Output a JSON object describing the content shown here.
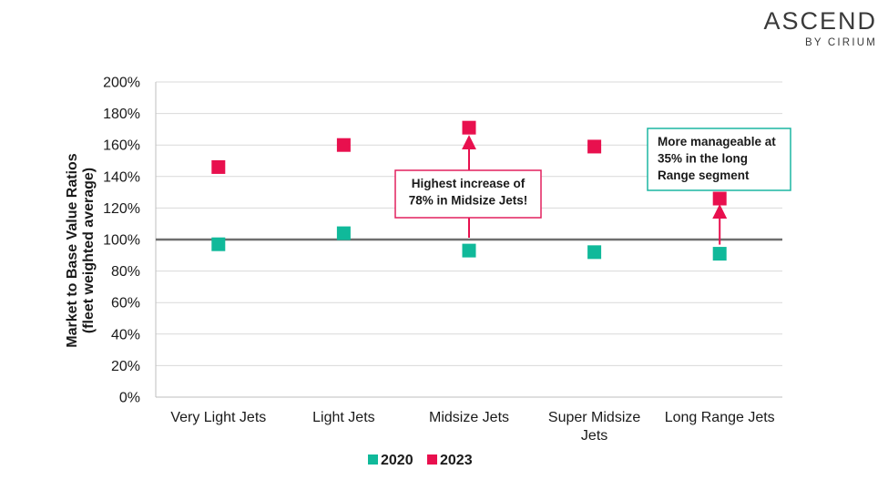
{
  "brand": {
    "name": "ASCEND",
    "sub": "BY CIRIUM"
  },
  "colors": {
    "s2020": "#10b99a",
    "s2023": "#e8104e",
    "pink_border": "#e2205e",
    "teal_border": "#1bb5a2"
  },
  "chart_data": {
    "type": "scatter",
    "ylabel": [
      "Market to Base Value Ratios",
      "(fleet weighted average)"
    ],
    "categories": [
      [
        "Very Light Jets"
      ],
      [
        "Light Jets"
      ],
      [
        "Midsize Jets"
      ],
      [
        "Super Midsize",
        "Jets"
      ],
      [
        "Long Range Jets"
      ]
    ],
    "ylim": [
      0,
      200
    ],
    "yticks": [
      0,
      20,
      40,
      60,
      80,
      100,
      120,
      140,
      160,
      180,
      200
    ],
    "ytick_labels": [
      "0%",
      "20%",
      "40%",
      "60%",
      "80%",
      "100%",
      "120%",
      "140%",
      "160%",
      "180%",
      "200%"
    ],
    "reference_line": 100,
    "grid": true,
    "legend": "bottom-center",
    "series": [
      {
        "name": "2020",
        "values": [
          97,
          104,
          93,
          92,
          91
        ]
      },
      {
        "name": "2023",
        "values": [
          146,
          160,
          171,
          159,
          126
        ]
      }
    ],
    "annotations": [
      {
        "lines": [
          "Highest increase of",
          "78% in Midsize Jets!"
        ],
        "category_index": 2
      },
      {
        "lines": [
          "More manageable at",
          "35% in the long",
          "Range segment"
        ],
        "category_index": 4
      }
    ]
  }
}
